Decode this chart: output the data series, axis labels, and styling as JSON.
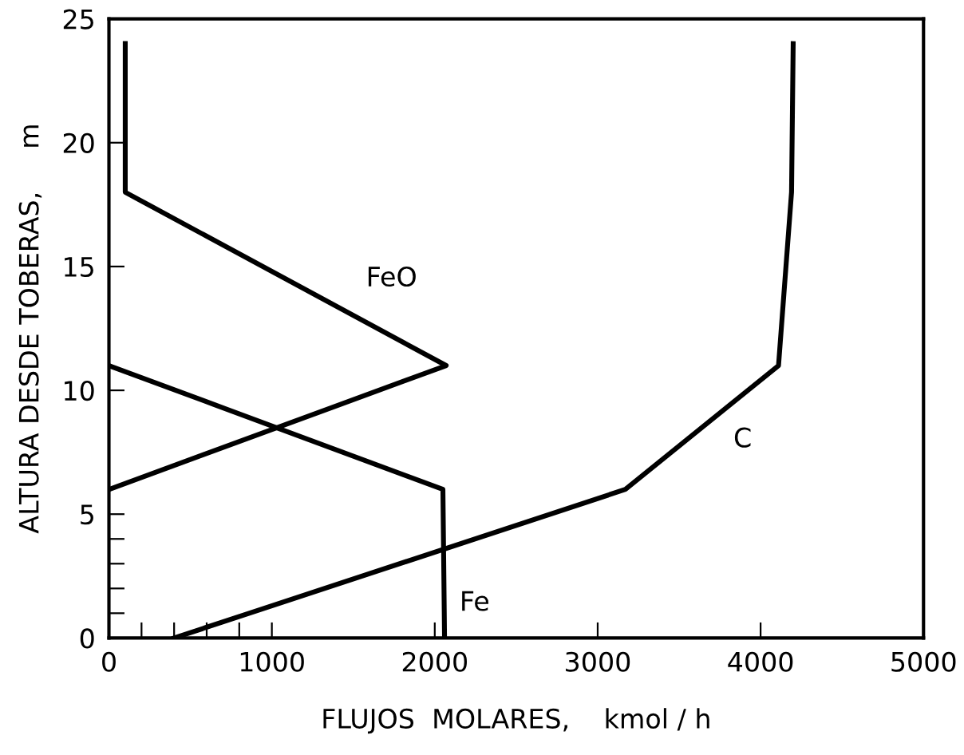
{
  "chart_data": {
    "type": "line",
    "xlabel": "FLUJOS  MOLARES,    kmol / h",
    "ylabel": "ALTURA DESDE TOBERAS,     m",
    "xlim": [
      0,
      5000
    ],
    "ylim": [
      0,
      25
    ],
    "xticks": [
      0,
      {
        "value": 200,
        "label": null
      },
      {
        "value": 400,
        "label": null
      },
      {
        "value": 600,
        "label": null
      },
      {
        "value": 800,
        "label": null
      },
      1000,
      2000,
      3000,
      4000,
      5000
    ],
    "yticks": [
      0,
      {
        "value": 1,
        "label": null
      },
      {
        "value": 2,
        "label": null
      },
      {
        "value": 3,
        "label": null
      },
      {
        "value": 4,
        "label": null
      },
      5,
      10,
      15,
      20,
      25
    ],
    "grid": false,
    "legend": false,
    "marker": "none",
    "line_style": "solid",
    "series": [
      {
        "name": "FeO",
        "color": "#000000",
        "x": [
          100,
          100,
          2070,
          0
        ],
        "values": [
          24,
          18,
          11,
          6
        ]
      },
      {
        "name": "Fe",
        "color": "#000000",
        "x": [
          0,
          2050,
          2060
        ],
        "values": [
          11,
          6,
          0
        ]
      },
      {
        "name": "C",
        "color": "#000000",
        "x": [
          400,
          3170,
          4110,
          4190,
          4200
        ],
        "values": [
          0,
          6,
          11,
          18,
          24
        ]
      }
    ]
  }
}
